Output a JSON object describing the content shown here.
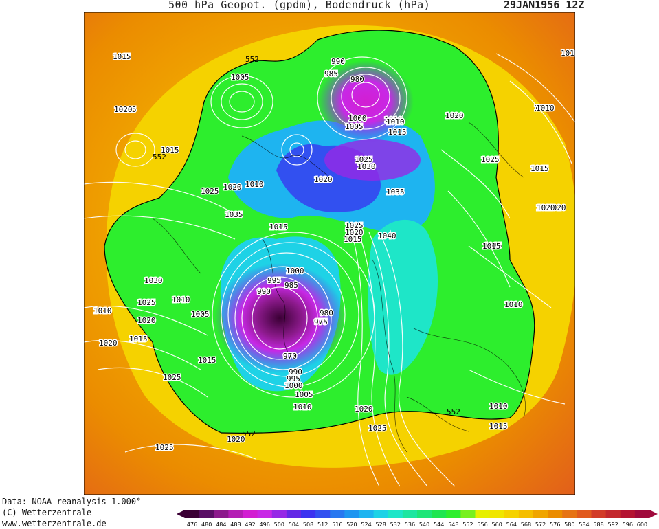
{
  "header": {
    "title": "500 hPa Geopot. (gpdm), Bodendruck (hPa)",
    "date": "29JAN1956 12Z"
  },
  "footer": {
    "data_line": "Data: NOAA reanalysis 1.000°",
    "copyright_line": "(C) Wetterzentrale",
    "url_line": "www.wetterzentrale.de"
  },
  "legend": {
    "values": [
      "476",
      "480",
      "484",
      "488",
      "492",
      "496",
      "500",
      "504",
      "508",
      "512",
      "516",
      "520",
      "524",
      "528",
      "532",
      "536",
      "540",
      "544",
      "548",
      "552",
      "556",
      "560",
      "564",
      "568",
      "572",
      "576",
      "580",
      "584",
      "588",
      "592",
      "596",
      "600"
    ],
    "colors": [
      "#3b0035",
      "#5a0e65",
      "#8c1a8c",
      "#b41eb4",
      "#d21ed2",
      "#c828e6",
      "#9628e6",
      "#6428e6",
      "#3c32f0",
      "#3250f0",
      "#2878f0",
      "#1e96f0",
      "#1eb4f0",
      "#1ed2e6",
      "#1ee6c8",
      "#1ee6a0",
      "#1ee678",
      "#1ee650",
      "#2dee2d",
      "#78f01e",
      "#e6f000",
      "#f0e600",
      "#f5d200",
      "#f5be00",
      "#f0a500",
      "#eb8c00",
      "#e67314",
      "#e15a1e",
      "#d23c28",
      "#c3282d",
      "#b41432",
      "#a00a3c"
    ]
  },
  "map": {
    "contour_label_552": "552",
    "isobar_labels": [
      "1015",
      "1005",
      "1015",
      "1015",
      "1025",
      "1020",
      "1010",
      "1035",
      "1015",
      "990",
      "985",
      "980",
      "1000",
      "1005",
      "1010",
      "1015",
      "1020",
      "1025",
      "1030",
      "1020",
      "1035",
      "1025",
      "1020",
      "1015",
      "1040",
      "1010",
      "1015",
      "1020",
      "1015",
      "1010",
      "1025",
      "1010",
      "1020",
      "1030",
      "1015",
      "1020",
      "1025",
      "1010",
      "1005",
      "1000",
      "995",
      "990",
      "985",
      "980",
      "975",
      "970",
      "990",
      "995",
      "1000",
      "1005",
      "1010",
      "1015",
      "1020",
      "1025",
      "1025",
      "1015",
      "1010",
      "1010",
      "1020",
      "1020",
      "1025",
      "1020",
      "1010",
      "1015",
      "1020",
      "1015",
      "1025",
      "1010",
      "1015"
    ]
  }
}
